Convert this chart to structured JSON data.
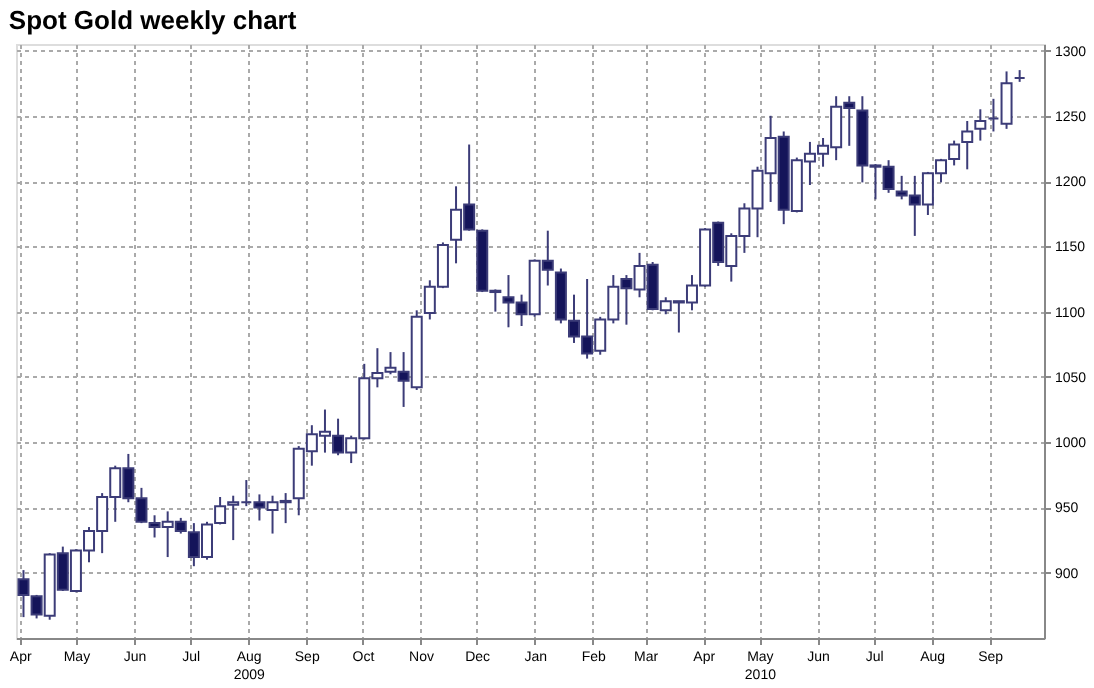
{
  "chart_data": {
    "type": "candlestick",
    "title": "Spot Gold weekly chart",
    "x": [
      "2009-04-03",
      "2009-04-10",
      "2009-04-17",
      "2009-04-24",
      "2009-05-01",
      "2009-05-08",
      "2009-05-15",
      "2009-05-22",
      "2009-05-29",
      "2009-06-05",
      "2009-06-12",
      "2009-06-19",
      "2009-06-26",
      "2009-07-03",
      "2009-07-10",
      "2009-07-17",
      "2009-07-24",
      "2009-07-31",
      "2009-08-07",
      "2009-08-14",
      "2009-08-21",
      "2009-08-28",
      "2009-09-04",
      "2009-09-11",
      "2009-09-18",
      "2009-09-25",
      "2009-10-02",
      "2009-10-09",
      "2009-10-16",
      "2009-10-23",
      "2009-10-30",
      "2009-11-06",
      "2009-11-13",
      "2009-11-20",
      "2009-11-27",
      "2009-12-04",
      "2009-12-11",
      "2009-12-18",
      "2009-12-25",
      "2010-01-01",
      "2010-01-08",
      "2010-01-15",
      "2010-01-22",
      "2010-01-29",
      "2010-02-05",
      "2010-02-12",
      "2010-02-19",
      "2010-02-26",
      "2010-03-05",
      "2010-03-12",
      "2010-03-19",
      "2010-03-26",
      "2010-04-02",
      "2010-04-09",
      "2010-04-16",
      "2010-04-23",
      "2010-04-30",
      "2010-05-07",
      "2010-05-14",
      "2010-05-21",
      "2010-05-28",
      "2010-06-04",
      "2010-06-11",
      "2010-06-18",
      "2010-06-25",
      "2010-07-02",
      "2010-07-09",
      "2010-07-16",
      "2010-07-23",
      "2010-07-30",
      "2010-08-06",
      "2010-08-13",
      "2010-08-20",
      "2010-08-27",
      "2010-09-03",
      "2010-09-10",
      "2010-09-17"
    ],
    "ohlc": [
      [
        895,
        902,
        866,
        883
      ],
      [
        882,
        883,
        865,
        868
      ],
      [
        867,
        915,
        864,
        914
      ],
      [
        915,
        920,
        886,
        887
      ],
      [
        886,
        918,
        885,
        917
      ],
      [
        917,
        935,
        908,
        932
      ],
      [
        932,
        961,
        915,
        958
      ],
      [
        958,
        982,
        939,
        980
      ],
      [
        980,
        991,
        954,
        957
      ],
      [
        957,
        965,
        938,
        939
      ],
      [
        938,
        944,
        927,
        935
      ],
      [
        935,
        947,
        912,
        939
      ],
      [
        939,
        942,
        930,
        932
      ],
      [
        931,
        938,
        905,
        912
      ],
      [
        912,
        939,
        910,
        937
      ],
      [
        938,
        958,
        937,
        951
      ],
      [
        952,
        959,
        925,
        954
      ],
      [
        954,
        971,
        951,
        954
      ],
      [
        954,
        960,
        940,
        950
      ],
      [
        948,
        959,
        930,
        954
      ],
      [
        954,
        961,
        938,
        955
      ],
      [
        957,
        997,
        944,
        995
      ],
      [
        993,
        1013,
        982,
        1006
      ],
      [
        1005,
        1025,
        992,
        1008
      ],
      [
        1005,
        1018,
        990,
        992
      ],
      [
        992,
        1005,
        984,
        1003
      ],
      [
        1003,
        1060,
        1002,
        1049
      ],
      [
        1049,
        1072,
        1042,
        1053
      ],
      [
        1054,
        1069,
        1052,
        1057
      ],
      [
        1054,
        1069,
        1027,
        1047
      ],
      [
        1042,
        1101,
        1040,
        1096
      ],
      [
        1099,
        1124,
        1094,
        1119
      ],
      [
        1119,
        1153,
        1118,
        1151
      ],
      [
        1155,
        1196,
        1137,
        1178
      ],
      [
        1182,
        1228,
        1162,
        1163
      ],
      [
        1162,
        1163,
        1115,
        1116
      ],
      [
        1116,
        1117,
        1100,
        1115
      ],
      [
        1111,
        1128,
        1088,
        1107
      ],
      [
        1107,
        1113,
        1089,
        1098
      ],
      [
        1098,
        1140,
        1096,
        1139
      ],
      [
        1139,
        1162,
        1120,
        1132
      ],
      [
        1130,
        1133,
        1091,
        1094
      ],
      [
        1093,
        1113,
        1076,
        1081
      ],
      [
        1081,
        1125,
        1064,
        1068
      ],
      [
        1070,
        1096,
        1067,
        1094
      ],
      [
        1094,
        1128,
        1091,
        1119
      ],
      [
        1125,
        1128,
        1090,
        1118
      ],
      [
        1117,
        1145,
        1111,
        1135
      ],
      [
        1136,
        1138,
        1101,
        1102
      ],
      [
        1101,
        1111,
        1098,
        1108
      ],
      [
        1107,
        1108,
        1084,
        1108
      ],
      [
        1107,
        1128,
        1101,
        1120
      ],
      [
        1120,
        1164,
        1119,
        1163
      ],
      [
        1168,
        1169,
        1135,
        1138
      ],
      [
        1135,
        1160,
        1123,
        1158
      ],
      [
        1158,
        1183,
        1145,
        1179
      ],
      [
        1179,
        1211,
        1157,
        1208
      ],
      [
        1206,
        1250,
        1184,
        1233
      ],
      [
        1234,
        1238,
        1167,
        1178
      ],
      [
        1177,
        1218,
        1176,
        1216
      ],
      [
        1215,
        1230,
        1197,
        1221
      ],
      [
        1221,
        1233,
        1211,
        1227
      ],
      [
        1226,
        1265,
        1216,
        1257
      ],
      [
        1260,
        1265,
        1227,
        1256
      ],
      [
        1254,
        1265,
        1199,
        1212
      ],
      [
        1212,
        1213,
        1186,
        1211
      ],
      [
        1211,
        1216,
        1191,
        1194
      ],
      [
        1192,
        1204,
        1186,
        1189
      ],
      [
        1189,
        1204,
        1158,
        1182
      ],
      [
        1182,
        1207,
        1174,
        1206
      ],
      [
        1206,
        1217,
        1199,
        1216
      ],
      [
        1217,
        1231,
        1212,
        1228
      ],
      [
        1230,
        1246,
        1209,
        1238
      ],
      [
        1240,
        1255,
        1231,
        1246
      ],
      [
        1248,
        1263,
        1238,
        1248
      ],
      [
        1244,
        1284,
        1240,
        1275
      ],
      [
        1279,
        1285,
        1276,
        1279
      ]
    ],
    "colors": [
      "#14145a",
      "#14145a",
      "#ffffff",
      "#14145a",
      "#ffffff",
      "#ffffff",
      "#ffffff",
      "#ffffff",
      "#14145a",
      "#14145a",
      "#14145a",
      "#ffffff",
      "#14145a",
      "#14145a",
      "#ffffff",
      "#ffffff",
      "#ffffff",
      "#3c3c78",
      "#14145a",
      "#ffffff",
      "#ffffff",
      "#ffffff",
      "#ffffff",
      "#ffffff",
      "#14145a",
      "#ffffff",
      "#ffffff",
      "#ffffff",
      "#ffffff",
      "#14145a",
      "#ffffff",
      "#ffffff",
      "#ffffff",
      "#ffffff",
      "#14145a",
      "#14145a",
      "#14145a",
      "#14145a",
      "#14145a",
      "#ffffff",
      "#14145a",
      "#14145a",
      "#14145a",
      "#14145a",
      "#ffffff",
      "#ffffff",
      "#14145a",
      "#ffffff",
      "#14145a",
      "#ffffff",
      "#ffffff",
      "#ffffff",
      "#ffffff",
      "#14145a",
      "#ffffff",
      "#ffffff",
      "#ffffff",
      "#ffffff",
      "#14145a",
      "#ffffff",
      "#ffffff",
      "#ffffff",
      "#ffffff",
      "#14145a",
      "#14145a",
      "#14145a",
      "#14145a",
      "#14145a",
      "#14145a",
      "#ffffff",
      "#ffffff",
      "#ffffff",
      "#ffffff",
      "#ffffff",
      "#3c3c78",
      "#ffffff",
      "#3c3c78"
    ],
    "xlim": [
      "2009-03-30",
      "2010-09-30"
    ],
    "xticks": [
      {
        "value": "2009-04-01",
        "label": "Apr"
      },
      {
        "value": "2009-05-01",
        "label": "May"
      },
      {
        "value": "2009-06-01",
        "label": "Jun"
      },
      {
        "value": "2009-07-01",
        "label": "Jul"
      },
      {
        "value": "2009-08-01",
        "label": "Aug\n2009"
      },
      {
        "value": "2009-09-01",
        "label": "Sep"
      },
      {
        "value": "2009-10-01",
        "label": "Oct"
      },
      {
        "value": "2009-11-01",
        "label": "Nov"
      },
      {
        "value": "2009-12-01",
        "label": "Dec"
      },
      {
        "value": "2010-01-01",
        "label": "Jan"
      },
      {
        "value": "2010-02-01",
        "label": "Feb"
      },
      {
        "value": "2010-03-01",
        "label": "Mar"
      },
      {
        "value": "2010-04-01",
        "label": "Apr"
      },
      {
        "value": "2010-05-01",
        "label": "May\n2010"
      },
      {
        "value": "2010-06-01",
        "label": "Jun"
      },
      {
        "value": "2010-07-01",
        "label": "Jul"
      },
      {
        "value": "2010-08-01",
        "label": "Aug"
      },
      {
        "value": "2010-09-01",
        "label": "Sep"
      }
    ],
    "ylim": [
      850,
      1305
    ],
    "yticks": [
      900,
      950,
      1000,
      1050,
      1100,
      1150,
      1200,
      1250,
      1300
    ],
    "grid": true
  }
}
